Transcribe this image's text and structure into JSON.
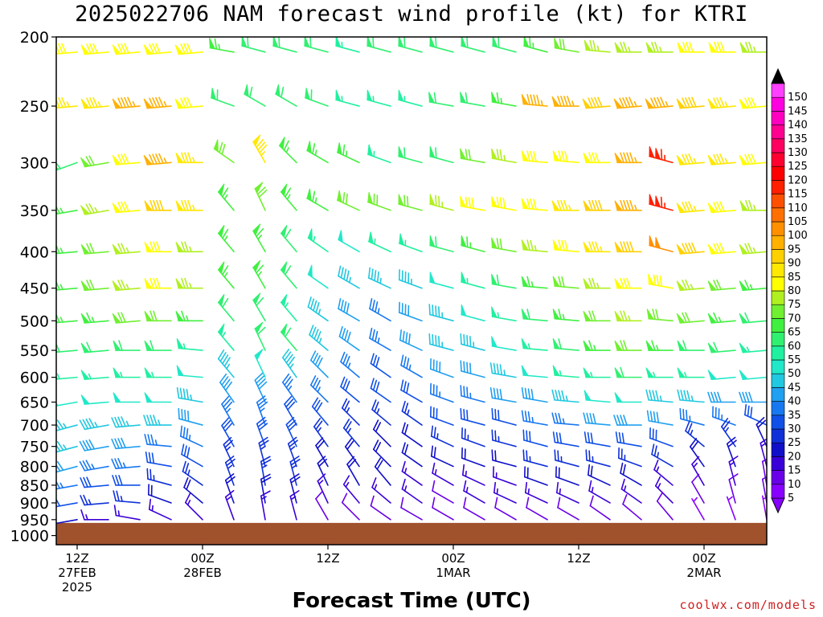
{
  "title": "2025022706 NAM forecast wind profile (kt) for KTRI",
  "xaxis_title": "Forecast Time (UTC)",
  "credit": "coolwx.com/models",
  "colors": {
    "ground": "#a0522d"
  },
  "chart_data": {
    "type": "wind_barb_profile",
    "title": "2025022706 NAM forecast wind profile (kt) for KTRI",
    "xlabel": "Forecast Time (UTC)",
    "ylabel": "",
    "units": "kt",
    "x_range_hours": [
      -2,
      66
    ],
    "y_range_hPa": [
      1030,
      200
    ],
    "y_ticks": [
      200,
      250,
      300,
      350,
      400,
      450,
      500,
      550,
      600,
      650,
      700,
      750,
      800,
      850,
      900,
      950,
      1000
    ],
    "x_ticks": [
      {
        "hour": 0,
        "lines": [
          "12Z",
          "27FEB",
          "2025"
        ]
      },
      {
        "hour": 12,
        "lines": [
          "00Z",
          "28FEB"
        ]
      },
      {
        "hour": 24,
        "lines": [
          "12Z"
        ]
      },
      {
        "hour": 36,
        "lines": [
          "00Z",
          "1MAR"
        ]
      },
      {
        "hour": 48,
        "lines": [
          "12Z"
        ]
      },
      {
        "hour": 60,
        "lines": [
          "00Z",
          "2MAR"
        ]
      },
      {
        "hour": 72,
        "lines": [
          "12Z"
        ]
      }
    ],
    "ground_level_hPa": 960,
    "colorbar": {
      "levels": [
        5,
        10,
        15,
        20,
        25,
        30,
        35,
        40,
        45,
        50,
        55,
        60,
        65,
        70,
        75,
        80,
        85,
        90,
        95,
        100,
        105,
        110,
        115,
        120,
        125,
        130,
        135,
        140,
        145,
        150
      ],
      "colors": [
        "#8800ff",
        "#6a00e8",
        "#3a00d8",
        "#1010c8",
        "#1030d8",
        "#1050e8",
        "#1878f0",
        "#20a0f0",
        "#20c8e0",
        "#20e8c8",
        "#20f0a0",
        "#30f070",
        "#40f040",
        "#70f030",
        "#b0f020",
        "#ffff00",
        "#ffe800",
        "#ffd000",
        "#ffb000",
        "#ff9000",
        "#ff7000",
        "#ff5000",
        "#ff2000",
        "#ff0000",
        "#ff0030",
        "#ff0060",
        "#ff0090",
        "#ff00c0",
        "#ff00e0",
        "#ff40ff"
      ],
      "top_arrow": "#000000",
      "bottom_arrow": "#8800ff"
    },
    "levels_hPa": [
      950,
      900,
      850,
      800,
      750,
      700,
      650,
      600,
      550,
      500,
      450,
      400,
      350,
      300,
      250,
      210
    ],
    "time_hours": [
      -3,
      0,
      3,
      6,
      9,
      12,
      15,
      18,
      21,
      24,
      27,
      30,
      33,
      36,
      39,
      42,
      45,
      48,
      51,
      54,
      57,
      60,
      63,
      66,
      69,
      72,
      75
    ],
    "series": [
      {
        "level_hPa": 210,
        "speed_kt": [
          80,
          80,
          80,
          80,
          80,
          80,
          65,
          60,
          60,
          60,
          55,
          60,
          60,
          60,
          60,
          60,
          65,
          70,
          75,
          75,
          75,
          80,
          80,
          75,
          70,
          65,
          65
        ],
        "direction_deg": [
          265,
          265,
          265,
          265,
          265,
          265,
          280,
          285,
          285,
          285,
          285,
          285,
          285,
          285,
          285,
          285,
          285,
          280,
          275,
          270,
          270,
          270,
          270,
          270,
          275,
          285,
          295
        ]
      },
      {
        "level_hPa": 250,
        "speed_kt": [
          85,
          85,
          85,
          95,
          95,
          80,
          60,
          60,
          60,
          60,
          55,
          55,
          55,
          60,
          60,
          65,
          95,
          95,
          90,
          95,
          95,
          90,
          85,
          80,
          75,
          60,
          70
        ],
        "direction_deg": [
          265,
          265,
          265,
          265,
          265,
          265,
          290,
          300,
          300,
          290,
          285,
          285,
          285,
          280,
          280,
          280,
          275,
          270,
          265,
          265,
          265,
          265,
          265,
          265,
          275,
          290,
          305
        ]
      },
      {
        "level_hPa": 300,
        "speed_kt": [
          55,
          60,
          70,
          80,
          95,
          85,
          70,
          85,
          65,
          65,
          65,
          55,
          60,
          60,
          70,
          75,
          80,
          80,
          80,
          95,
          115,
          85,
          85,
          80,
          65,
          55,
          105
        ],
        "direction_deg": [
          260,
          250,
          260,
          265,
          265,
          270,
          305,
          330,
          315,
          300,
          295,
          290,
          285,
          285,
          280,
          280,
          275,
          275,
          270,
          270,
          285,
          265,
          265,
          265,
          275,
          285,
          310
        ]
      },
      {
        "level_hPa": 350,
        "speed_kt": [
          60,
          65,
          75,
          80,
          90,
          85,
          65,
          70,
          65,
          65,
          70,
          70,
          70,
          75,
          80,
          80,
          80,
          85,
          90,
          95,
          115,
          85,
          80,
          75,
          70,
          65,
          75
        ],
        "direction_deg": [
          265,
          260,
          260,
          265,
          270,
          270,
          320,
          335,
          320,
          300,
          295,
          290,
          285,
          285,
          280,
          280,
          275,
          270,
          270,
          270,
          285,
          265,
          265,
          270,
          280,
          290,
          310
        ]
      },
      {
        "level_hPa": 400,
        "speed_kt": [
          60,
          65,
          70,
          75,
          80,
          75,
          65,
          65,
          60,
          55,
          50,
          55,
          55,
          60,
          65,
          70,
          75,
          80,
          85,
          90,
          100,
          90,
          80,
          75,
          70,
          65,
          70
        ],
        "direction_deg": [
          265,
          265,
          265,
          265,
          270,
          270,
          320,
          330,
          320,
          305,
          300,
          295,
          290,
          285,
          285,
          280,
          275,
          275,
          270,
          270,
          285,
          265,
          265,
          265,
          275,
          285,
          305
        ]
      },
      {
        "level_hPa": 450,
        "speed_kt": [
          60,
          65,
          70,
          75,
          80,
          75,
          65,
          65,
          60,
          50,
          45,
          45,
          45,
          50,
          55,
          60,
          65,
          70,
          75,
          80,
          80,
          75,
          70,
          65,
          65,
          60,
          65
        ],
        "direction_deg": [
          265,
          265,
          265,
          265,
          270,
          270,
          320,
          330,
          320,
          305,
          300,
          295,
          290,
          285,
          285,
          280,
          275,
          275,
          270,
          270,
          280,
          265,
          265,
          265,
          275,
          285,
          305
        ]
      },
      {
        "level_hPa": 500,
        "speed_kt": [
          60,
          65,
          65,
          70,
          70,
          65,
          60,
          60,
          55,
          45,
          40,
          35,
          40,
          45,
          50,
          55,
          60,
          65,
          70,
          75,
          70,
          70,
          65,
          60,
          60,
          55,
          55
        ],
        "direction_deg": [
          265,
          265,
          265,
          265,
          270,
          270,
          320,
          330,
          320,
          305,
          300,
          300,
          290,
          285,
          285,
          280,
          275,
          275,
          270,
          270,
          275,
          265,
          265,
          265,
          275,
          285,
          305
        ]
      },
      {
        "level_hPa": 550,
        "speed_kt": [
          60,
          60,
          60,
          60,
          60,
          55,
          55,
          60,
          60,
          45,
          40,
          35,
          40,
          45,
          45,
          50,
          55,
          60,
          65,
          70,
          65,
          60,
          60,
          55,
          55,
          50,
          50
        ],
        "direction_deg": [
          265,
          265,
          265,
          270,
          270,
          275,
          320,
          335,
          320,
          310,
          305,
          300,
          295,
          285,
          285,
          280,
          275,
          275,
          270,
          270,
          270,
          270,
          265,
          265,
          275,
          285,
          305
        ]
      },
      {
        "level_hPa": 600,
        "speed_kt": [
          55,
          55,
          55,
          55,
          55,
          50,
          45,
          50,
          45,
          40,
          35,
          30,
          35,
          40,
          40,
          45,
          50,
          55,
          55,
          60,
          55,
          55,
          50,
          50,
          45,
          45,
          45
        ],
        "direction_deg": [
          265,
          265,
          265,
          270,
          270,
          275,
          320,
          335,
          325,
          315,
          310,
          305,
          300,
          290,
          285,
          280,
          275,
          275,
          270,
          270,
          270,
          270,
          265,
          265,
          275,
          285,
          305
        ]
      },
      {
        "level_hPa": 650,
        "speed_kt": [
          50,
          50,
          50,
          50,
          50,
          45,
          40,
          40,
          35,
          35,
          30,
          30,
          30,
          35,
          35,
          40,
          40,
          45,
          50,
          50,
          45,
          45,
          40,
          40,
          40,
          35,
          40
        ],
        "direction_deg": [
          260,
          260,
          265,
          270,
          270,
          280,
          325,
          335,
          325,
          315,
          310,
          305,
          300,
          290,
          285,
          280,
          280,
          275,
          275,
          270,
          275,
          275,
          270,
          270,
          280,
          290,
          305
        ]
      },
      {
        "level_hPa": 700,
        "speed_kt": [
          45,
          45,
          45,
          45,
          45,
          40,
          35,
          35,
          30,
          30,
          25,
          25,
          25,
          30,
          30,
          30,
          35,
          35,
          40,
          40,
          40,
          35,
          35,
          30,
          30,
          30,
          35
        ],
        "direction_deg": [
          255,
          255,
          260,
          265,
          270,
          285,
          330,
          340,
          330,
          320,
          315,
          310,
          305,
          290,
          285,
          285,
          280,
          275,
          275,
          270,
          280,
          285,
          290,
          295,
          300,
          305,
          310
        ]
      },
      {
        "level_hPa": 750,
        "speed_kt": [
          45,
          45,
          40,
          40,
          35,
          35,
          30,
          30,
          30,
          25,
          25,
          20,
          20,
          25,
          25,
          25,
          30,
          30,
          30,
          30,
          30,
          25,
          25,
          20,
          20,
          20,
          25
        ],
        "direction_deg": [
          255,
          255,
          260,
          265,
          275,
          295,
          330,
          340,
          335,
          325,
          320,
          315,
          305,
          295,
          290,
          285,
          285,
          280,
          280,
          280,
          290,
          310,
          325,
          335,
          340,
          340,
          340
        ]
      },
      {
        "level_hPa": 800,
        "speed_kt": [
          40,
          40,
          35,
          35,
          30,
          30,
          25,
          25,
          25,
          20,
          20,
          20,
          20,
          20,
          20,
          20,
          25,
          25,
          25,
          25,
          25,
          20,
          20,
          15,
          15,
          15,
          20
        ],
        "direction_deg": [
          255,
          255,
          260,
          265,
          280,
          300,
          335,
          345,
          340,
          330,
          325,
          315,
          305,
          295,
          290,
          285,
          285,
          285,
          285,
          290,
          300,
          325,
          340,
          345,
          350,
          350,
          350
        ]
      },
      {
        "level_hPa": 850,
        "speed_kt": [
          35,
          35,
          30,
          30,
          25,
          25,
          25,
          25,
          25,
          20,
          20,
          20,
          15,
          15,
          15,
          15,
          20,
          20,
          20,
          20,
          15,
          15,
          15,
          10,
          10,
          10,
          15
        ],
        "direction_deg": [
          255,
          260,
          265,
          270,
          285,
          305,
          340,
          350,
          345,
          335,
          330,
          320,
          305,
          300,
          295,
          290,
          290,
          290,
          295,
          300,
          310,
          330,
          345,
          350,
          355,
          355,
          355
        ]
      },
      {
        "level_hPa": 900,
        "speed_kt": [
          30,
          30,
          25,
          25,
          20,
          20,
          20,
          20,
          20,
          15,
          15,
          15,
          15,
          10,
          15,
          15,
          15,
          15,
          15,
          15,
          15,
          10,
          10,
          10,
          5,
          5,
          5
        ],
        "direction_deg": [
          255,
          260,
          265,
          275,
          290,
          310,
          340,
          350,
          345,
          335,
          320,
          310,
          305,
          300,
          300,
          295,
          295,
          295,
          300,
          305,
          315,
          330,
          345,
          350,
          355,
          355,
          355
        ]
      },
      {
        "level_hPa": 950,
        "speed_kt": [
          20,
          20,
          15,
          15,
          15,
          15,
          15,
          15,
          15,
          10,
          10,
          10,
          10,
          10,
          10,
          10,
          10,
          10,
          10,
          10,
          10,
          5,
          5,
          5,
          5,
          5,
          5
        ],
        "direction_deg": [
          255,
          260,
          270,
          280,
          295,
          315,
          340,
          350,
          345,
          330,
          315,
          305,
          300,
          300,
          300,
          300,
          300,
          300,
          305,
          310,
          320,
          330,
          340,
          350,
          355,
          355,
          355
        ]
      }
    ]
  }
}
